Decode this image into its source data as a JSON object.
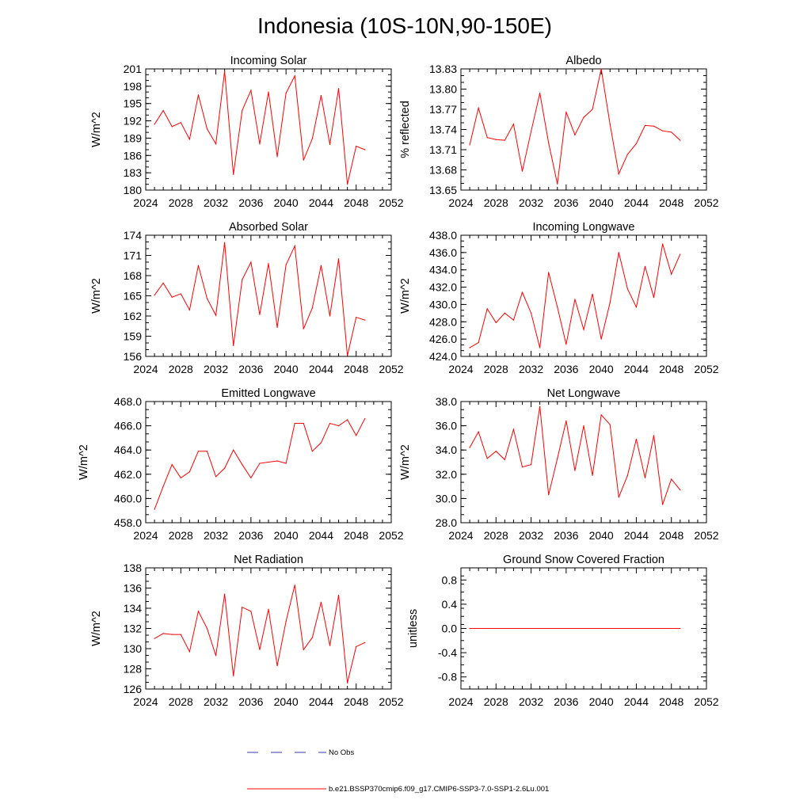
{
  "figure": {
    "title": "Indonesia (10S-10N,90-150E)"
  },
  "legend": {
    "entries": [
      {
        "label": "No Obs",
        "color": "#3a3aa8",
        "style": "dashed"
      },
      {
        "label": "b.e21.BSSP370cmip6.f09_g17.CMIP6-SSP3-7.0-SSP1-2.6Lu.001",
        "color": "#ff0000",
        "style": "solid"
      }
    ]
  },
  "series_color": "#ff0000",
  "chart_data": [
    {
      "type": "line",
      "title": "Incoming Solar",
      "xlabel": "",
      "ylabel": "W/m^2",
      "xlim": [
        2024,
        2052
      ],
      "xticks": [
        2024,
        2028,
        2032,
        2036,
        2040,
        2044,
        2048,
        2052
      ],
      "ylim": [
        180,
        201
      ],
      "yticks": [
        180,
        183,
        186,
        189,
        192,
        195,
        198,
        201
      ],
      "ytick_labels": [
        "180",
        "183",
        "186",
        "189",
        "192",
        "195",
        "198",
        "201"
      ],
      "x": [
        2025,
        2026,
        2027,
        2028,
        2029,
        2030,
        2031,
        2032,
        2033,
        2034,
        2035,
        2036,
        2037,
        2038,
        2039,
        2040,
        2041,
        2042,
        2043,
        2044,
        2045,
        2046,
        2047,
        2048,
        2049
      ],
      "y": [
        191.4,
        193.8,
        191.0,
        191.7,
        188.8,
        196.5,
        190.6,
        188.0,
        200.6,
        182.7,
        193.8,
        197.3,
        188.0,
        197.0,
        185.8,
        196.8,
        199.8,
        185.2,
        188.9,
        196.4,
        187.9,
        197.6,
        181.0,
        187.6,
        187.0
      ]
    },
    {
      "type": "line",
      "title": "Albedo",
      "xlabel": "",
      "ylabel": "% reflected",
      "xlim": [
        2024,
        2052
      ],
      "xticks": [
        2024,
        2028,
        2032,
        2036,
        2040,
        2044,
        2048,
        2052
      ],
      "ylim": [
        13.65,
        13.83
      ],
      "yticks": [
        13.65,
        13.68,
        13.71,
        13.74,
        13.77,
        13.8,
        13.83
      ],
      "ytick_labels": [
        "13.65",
        "13.68",
        "13.71",
        "13.74",
        "13.77",
        "13.80",
        "13.83"
      ],
      "x": [
        2025,
        2026,
        2027,
        2028,
        2029,
        2030,
        2031,
        2032,
        2033,
        2034,
        2035,
        2036,
        2037,
        2038,
        2039,
        2040,
        2041,
        2042,
        2043,
        2044,
        2045,
        2046,
        2047,
        2048,
        2049
      ],
      "y": [
        13.717,
        13.772,
        13.728,
        13.725,
        13.724,
        13.748,
        13.678,
        13.737,
        13.794,
        13.72,
        13.659,
        13.766,
        13.732,
        13.758,
        13.77,
        13.83,
        13.748,
        13.674,
        13.703,
        13.719,
        13.746,
        13.745,
        13.738,
        13.736,
        13.724
      ]
    },
    {
      "type": "line",
      "title": "Absorbed Solar",
      "xlabel": "",
      "ylabel": "W/m^2",
      "xlim": [
        2024,
        2052
      ],
      "xticks": [
        2024,
        2028,
        2032,
        2036,
        2040,
        2044,
        2048,
        2052
      ],
      "ylim": [
        156,
        174
      ],
      "yticks": [
        156,
        159,
        162,
        165,
        168,
        171,
        174
      ],
      "ytick_labels": [
        "156",
        "159",
        "162",
        "165",
        "168",
        "171",
        "174"
      ],
      "x": [
        2025,
        2026,
        2027,
        2028,
        2029,
        2030,
        2031,
        2032,
        2033,
        2034,
        2035,
        2036,
        2037,
        2038,
        2039,
        2040,
        2041,
        2042,
        2043,
        2044,
        2045,
        2046,
        2047,
        2048,
        2049
      ],
      "y": [
        165.1,
        166.9,
        164.8,
        165.3,
        162.9,
        169.5,
        164.6,
        162.1,
        172.9,
        157.6,
        167.4,
        170.0,
        162.2,
        169.8,
        160.3,
        169.6,
        172.4,
        160.1,
        163.2,
        169.5,
        162.0,
        170.5,
        156.1,
        161.8,
        161.4
      ]
    },
    {
      "type": "line",
      "title": "Incoming Longwave",
      "xlabel": "",
      "ylabel": "W/m^2",
      "xlim": [
        2024,
        2052
      ],
      "xticks": [
        2024,
        2028,
        2032,
        2036,
        2040,
        2044,
        2048,
        2052
      ],
      "ylim": [
        424,
        438
      ],
      "yticks": [
        424,
        426,
        428,
        430,
        432,
        434,
        436,
        438
      ],
      "ytick_labels": [
        "424.0",
        "426.0",
        "428.0",
        "430.0",
        "432.0",
        "434.0",
        "436.0",
        "438.0"
      ],
      "x": [
        2025,
        2026,
        2027,
        2028,
        2029,
        2030,
        2031,
        2032,
        2033,
        2034,
        2035,
        2036,
        2037,
        2038,
        2039,
        2040,
        2041,
        2042,
        2043,
        2044,
        2045,
        2046,
        2047,
        2048,
        2049
      ],
      "y": [
        425.0,
        425.6,
        429.5,
        427.9,
        429.0,
        428.2,
        431.4,
        429.0,
        425.0,
        433.7,
        429.7,
        425.4,
        430.6,
        427.1,
        431.2,
        426.0,
        430.2,
        436.0,
        431.8,
        429.7,
        434.4,
        430.8,
        437.0,
        433.5,
        435.8
      ]
    },
    {
      "type": "line",
      "title": "Emitted Longwave",
      "xlabel": "",
      "ylabel": "W/m^2",
      "xlim": [
        2024,
        2052
      ],
      "xticks": [
        2024,
        2028,
        2032,
        2036,
        2040,
        2044,
        2048,
        2052
      ],
      "ylim": [
        458,
        468
      ],
      "yticks": [
        458,
        460,
        462,
        464,
        466,
        468
      ],
      "ytick_labels": [
        "458.0",
        "460.0",
        "462.0",
        "464.0",
        "466.0",
        "468.0"
      ],
      "x": [
        2025,
        2026,
        2027,
        2028,
        2029,
        2030,
        2031,
        2032,
        2033,
        2034,
        2035,
        2036,
        2037,
        2038,
        2039,
        2040,
        2041,
        2042,
        2043,
        2044,
        2045,
        2046,
        2047,
        2048,
        2049
      ],
      "y": [
        459.1,
        461.0,
        462.8,
        461.7,
        462.2,
        463.9,
        463.9,
        461.8,
        462.5,
        464.0,
        462.8,
        461.7,
        462.9,
        463.0,
        463.1,
        462.9,
        466.2,
        466.2,
        463.9,
        464.6,
        466.2,
        466.0,
        466.5,
        465.2,
        466.6
      ]
    },
    {
      "type": "line",
      "title": "Net Longwave",
      "xlabel": "",
      "ylabel": "W/m^2",
      "xlim": [
        2024,
        2052
      ],
      "xticks": [
        2024,
        2028,
        2032,
        2036,
        2040,
        2044,
        2048,
        2052
      ],
      "ylim": [
        28,
        38
      ],
      "yticks": [
        28,
        30,
        32,
        34,
        36,
        38
      ],
      "ytick_labels": [
        "28.0",
        "30.0",
        "32.0",
        "34.0",
        "36.0",
        "38.0"
      ],
      "x": [
        2025,
        2026,
        2027,
        2028,
        2029,
        2030,
        2031,
        2032,
        2033,
        2034,
        2035,
        2036,
        2037,
        2038,
        2039,
        2040,
        2041,
        2042,
        2043,
        2044,
        2045,
        2046,
        2047,
        2048,
        2049
      ],
      "y": [
        34.2,
        35.5,
        33.3,
        33.9,
        33.2,
        35.7,
        32.6,
        32.8,
        37.6,
        30.3,
        33.3,
        36.4,
        32.3,
        36.0,
        31.9,
        36.9,
        36.1,
        30.1,
        31.9,
        34.9,
        31.7,
        35.2,
        29.5,
        31.6,
        30.7
      ]
    },
    {
      "type": "line",
      "title": "Net Radiation",
      "xlabel": "",
      "ylabel": "W/m^2",
      "xlim": [
        2024,
        2052
      ],
      "xticks": [
        2024,
        2028,
        2032,
        2036,
        2040,
        2044,
        2048,
        2052
      ],
      "ylim": [
        126,
        138
      ],
      "yticks": [
        126,
        128,
        130,
        132,
        134,
        136,
        138
      ],
      "ytick_labels": [
        "126",
        "128",
        "130",
        "132",
        "134",
        "136",
        "138"
      ],
      "x": [
        2025,
        2026,
        2027,
        2028,
        2029,
        2030,
        2031,
        2032,
        2033,
        2034,
        2035,
        2036,
        2037,
        2038,
        2039,
        2040,
        2041,
        2042,
        2043,
        2044,
        2045,
        2046,
        2047,
        2048,
        2049
      ],
      "y": [
        131.0,
        131.5,
        131.4,
        131.4,
        129.7,
        133.7,
        132.0,
        129.3,
        135.4,
        127.3,
        134.1,
        133.7,
        129.9,
        133.9,
        128.3,
        132.7,
        136.3,
        129.9,
        131.1,
        134.6,
        130.3,
        135.3,
        126.6,
        130.2,
        130.6
      ]
    },
    {
      "type": "line",
      "title": "Ground Snow Covered Fraction",
      "xlabel": "",
      "ylabel": "unitless",
      "xlim": [
        2024,
        2052
      ],
      "xticks": [
        2024,
        2028,
        2032,
        2036,
        2040,
        2044,
        2048,
        2052
      ],
      "ylim": [
        -1.0,
        1.0
      ],
      "yticks": [
        -0.8,
        -0.4,
        0.0,
        0.4,
        0.8
      ],
      "ytick_labels": [
        "-0.8",
        "-0.4",
        "0.0",
        "0.4",
        "0.8"
      ],
      "x": [
        2025,
        2049
      ],
      "y": [
        0.0,
        0.0
      ]
    }
  ]
}
